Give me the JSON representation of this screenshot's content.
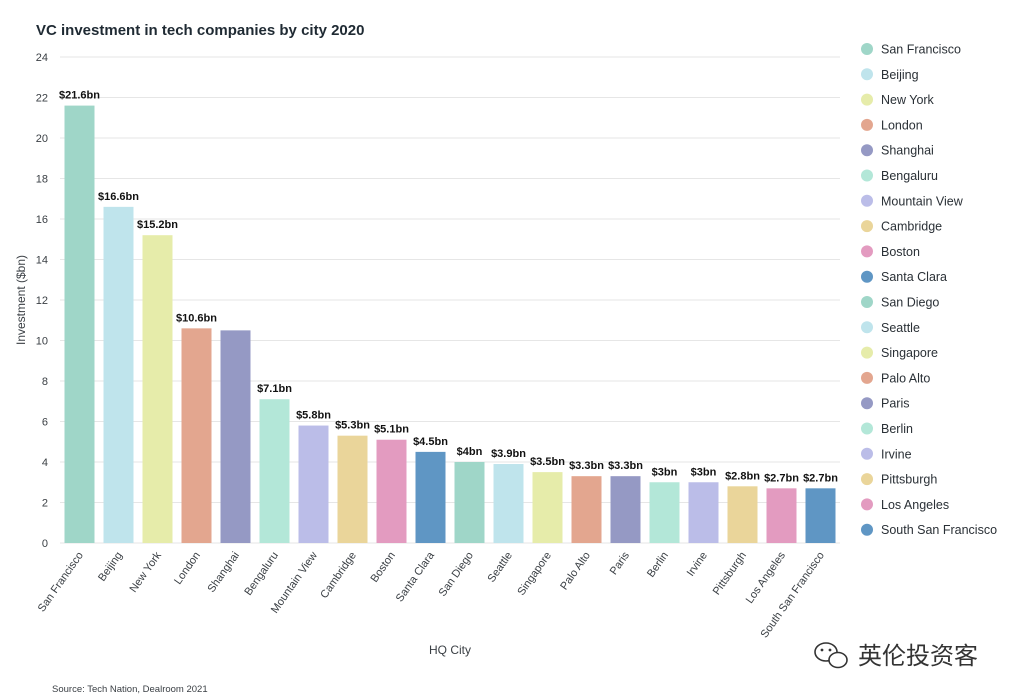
{
  "chart_data": {
    "type": "bar",
    "title": "VC investment in tech companies by city 2020",
    "xlabel": "HQ City",
    "ylabel": "Investment ($bn)",
    "ylim": [
      0,
      24
    ],
    "yticks": [
      0,
      2,
      4,
      6,
      8,
      10,
      12,
      14,
      16,
      18,
      20,
      22,
      24
    ],
    "grid": true,
    "legend_position": "right",
    "categories": [
      "San Francisco",
      "Beijing",
      "New York",
      "London",
      "Shanghai",
      "Bengaluru",
      "Mountain View",
      "Cambridge",
      "Boston",
      "Santa Clara",
      "San Diego",
      "Seattle",
      "Singapore",
      "Palo Alto",
      "Paris",
      "Berlin",
      "Irvine",
      "Pittsburgh",
      "Los Angeles",
      "South San Francisco"
    ],
    "values": [
      21.6,
      16.6,
      15.2,
      10.6,
      10.5,
      7.1,
      5.8,
      5.3,
      5.1,
      4.5,
      4.0,
      3.9,
      3.5,
      3.3,
      3.3,
      3.0,
      3.0,
      2.8,
      2.7,
      2.7
    ],
    "data_labels": [
      "$21.6bn",
      "$16.6bn",
      "$15.2bn",
      "$10.6bn",
      "",
      "$7.1bn",
      "$5.8bn",
      "$5.3bn",
      "$5.1bn",
      "$4.5bn",
      "$4bn",
      "$3.9bn",
      "$3.5bn",
      "$3.3bn",
      "$3.3bn",
      "$3bn",
      "$3bn",
      "$2.8bn",
      "$2.7bn",
      "$2.7bn"
    ],
    "colors": [
      "#9fd6c8",
      "#bfe4ec",
      "#e6ecaa",
      "#e3a68f",
      "#9599c4",
      "#b3e7d8",
      "#bbbde8",
      "#ead59a",
      "#e39bc0",
      "#5f96c4",
      "#9fd6c8",
      "#bfe4ec",
      "#e6ecaa",
      "#e3a68f",
      "#9599c4",
      "#b3e7d8",
      "#bbbde8",
      "#ead59a",
      "#e39bc0",
      "#5f96c4"
    ]
  },
  "source": "Source: Tech Nation, Dealroom 2021",
  "watermark": "英伦投资客"
}
